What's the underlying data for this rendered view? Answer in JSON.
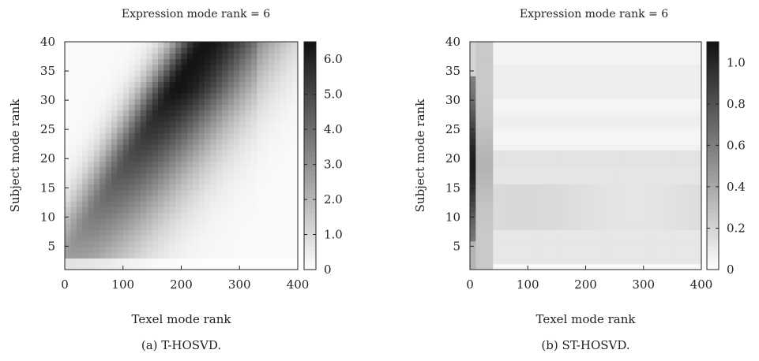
{
  "chart_data": [
    {
      "type": "heatmap",
      "title": "Expression mode rank = 6",
      "xlabel": "Texel mode rank",
      "ylabel": "Subject mode rank",
      "caption": "(a) T-HOSVD.",
      "xlim": [
        0,
        400
      ],
      "ylim": [
        1,
        40
      ],
      "xticks": [
        "0",
        "100",
        "200",
        "300",
        "400"
      ],
      "yticks": [
        "5",
        "10",
        "15",
        "20",
        "25",
        "30",
        "35",
        "40"
      ],
      "colorbar": {
        "min": 0,
        "max": 6.5,
        "ticks": [
          "0",
          "1.0",
          "2.0",
          "3.0",
          "4.0",
          "5.0",
          "6.0"
        ]
      },
      "grid": false
    },
    {
      "type": "heatmap",
      "title": "Expression mode rank = 6",
      "xlabel": "Texel mode rank",
      "ylabel": "Subject mode rank",
      "caption": "(b) ST-HOSVD.",
      "xlim": [
        0,
        400
      ],
      "ylim": [
        1,
        40
      ],
      "xticks": [
        "0",
        "100",
        "200",
        "300",
        "400"
      ],
      "yticks": [
        "5",
        "10",
        "15",
        "20",
        "25",
        "30",
        "35",
        "40"
      ],
      "colorbar": {
        "min": 0,
        "max": 1.1,
        "ticks": [
          "0",
          "0.2",
          "0.4",
          "0.6",
          "0.8",
          "1.0"
        ]
      },
      "grid": false
    }
  ]
}
